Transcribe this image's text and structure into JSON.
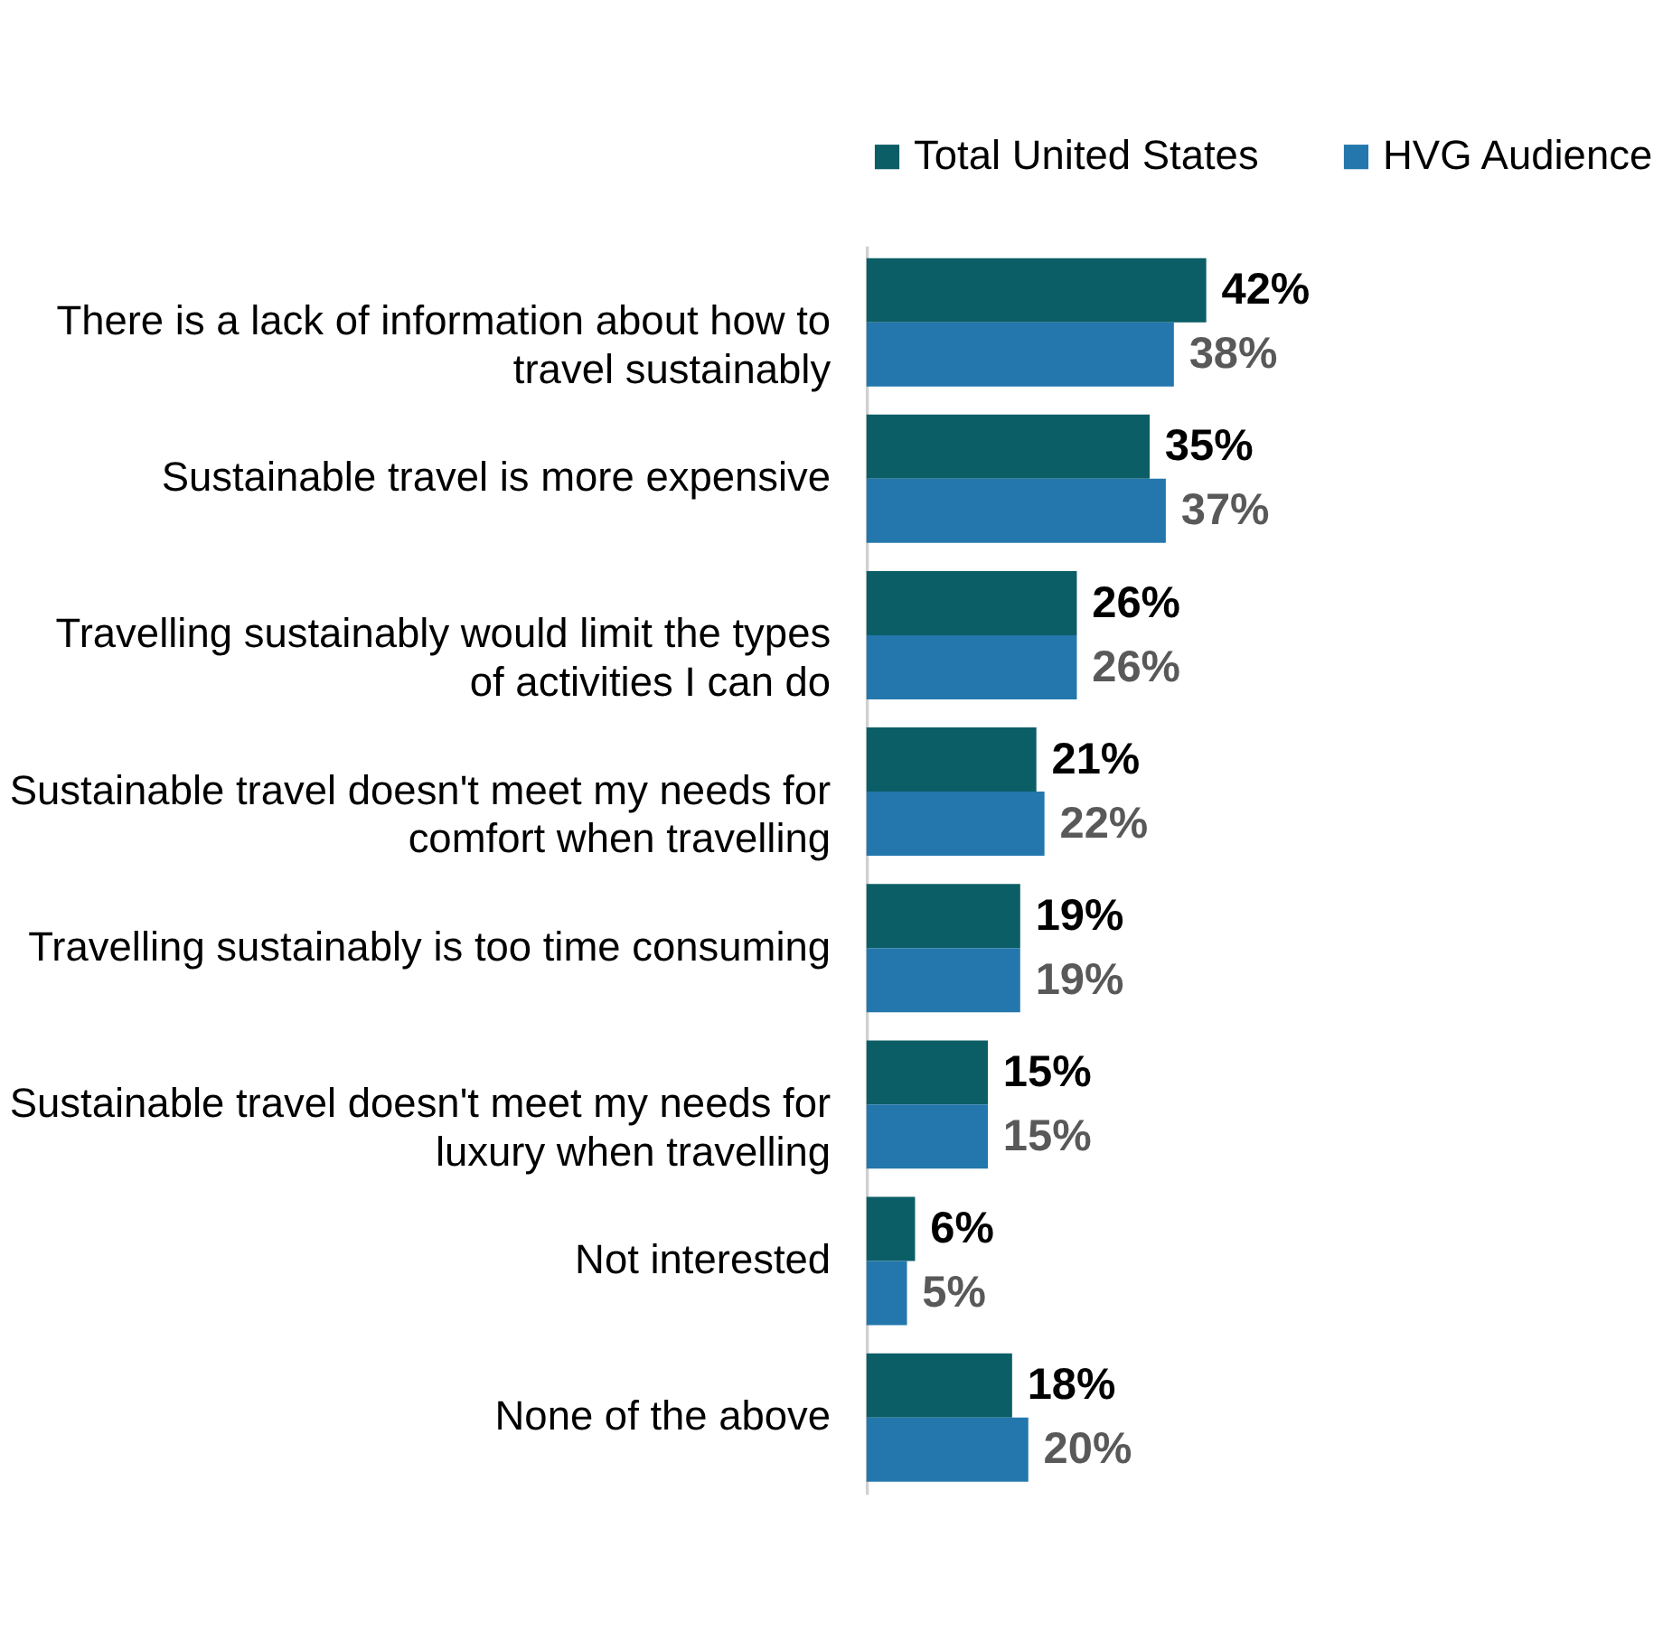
{
  "chart_data": {
    "type": "bar",
    "orientation": "horizontal",
    "legend": "top right",
    "grid": false,
    "categories": [
      "There is a lack of information about how to travel sustainably",
      "Sustainable travel is more expensive",
      "Travelling sustainably would limit the types of activities I can do",
      "Sustainable travel doesn't meet my needs for comfort when travelling",
      "Travelling sustainably is too time consuming",
      "Sustainable travel doesn't meet my needs for luxury when travelling",
      "Not interested",
      "None of the above"
    ],
    "series": [
      {
        "name": "Total United States",
        "color": "#0b5e66",
        "values": [
          42,
          35,
          26,
          21,
          19,
          15,
          6,
          18
        ],
        "value_labels": [
          "42%",
          "35%",
          "26%",
          "21%",
          "19%",
          "15%",
          "6%",
          "18%"
        ]
      },
      {
        "name": "HVG Audience",
        "color": "#2377ad",
        "values": [
          38,
          37,
          26,
          22,
          19,
          15,
          5,
          20
        ],
        "value_labels": [
          "38%",
          "37%",
          "26%",
          "22%",
          "19%",
          "15%",
          "5%",
          "20%"
        ]
      }
    ]
  }
}
